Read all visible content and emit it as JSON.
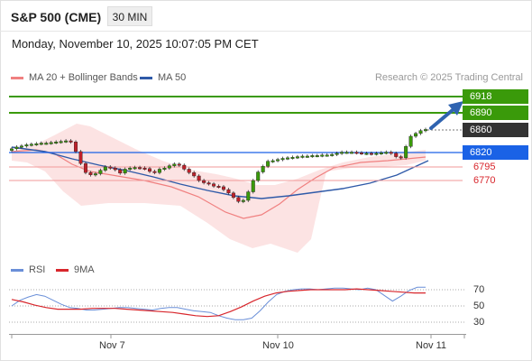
{
  "header": {
    "symbol": "S&P 500 (CME)",
    "timeframe": "30 MIN",
    "datetime": "Monday, November 10, 2025 10:07:05 PM CET"
  },
  "legend": {
    "ma20_label": "MA 20 + Bollinger Bands",
    "ma50_label": "MA 50",
    "source": "Research © 2025 Trading Central"
  },
  "levels": {
    "resistance2": "6918",
    "resistance1": "6890",
    "last_price": "6860",
    "pivot": "6820",
    "support1": "6795",
    "support2": "6770"
  },
  "rsi_legend": {
    "rsi_label": "RSI",
    "ma_label": "9MA"
  },
  "rsi_axis": [
    "70",
    "50",
    "30"
  ],
  "x_axis": [
    "Nov 7",
    "Nov 10",
    "Nov 11"
  ],
  "colors": {
    "resistance": "#3a9a0a",
    "pivot": "#1a62e6",
    "last_price": "#333333",
    "support": "#d8262c",
    "ma20_band": "#f08080",
    "ma50": "#2f5aa8",
    "up_candle": "#3a9a0a",
    "down_candle": "#c0202a",
    "rsi_line": "#6a8fd8",
    "rsi_ma": "#d8262c",
    "arrow": "#2f63b0"
  },
  "chart_data": {
    "type": "candlestick",
    "x": [
      "Nov 7",
      "Nov 10",
      "Nov 11"
    ],
    "closes": [
      6826,
      6829,
      6831,
      6833,
      6834,
      6835,
      6836,
      6836,
      6837,
      6838,
      6839,
      6840,
      6838,
      6821,
      6800,
      6784,
      6780,
      6782,
      6788,
      6794,
      6792,
      6789,
      6783,
      6790,
      6792,
      6793,
      6792,
      6791,
      6786,
      6784,
      6790,
      6792,
      6796,
      6799,
      6797,
      6790,
      6784,
      6778,
      6770,
      6766,
      6764,
      6760,
      6759,
      6754,
      6748,
      6740,
      6733,
      6735,
      6750,
      6770,
      6785,
      6795,
      6804,
      6805,
      6807,
      6809,
      6810,
      6811,
      6812,
      6813,
      6813,
      6814,
      6814,
      6815,
      6815,
      6816,
      6818,
      6820,
      6820,
      6820,
      6819,
      6818,
      6818,
      6817,
      6818,
      6819,
      6820,
      6818,
      6812,
      6810,
      6830,
      6848,
      6853,
      6858,
      6860
    ],
    "rsi": [
      50,
      57,
      61,
      64,
      62,
      57,
      52,
      48,
      47,
      45,
      45,
      46,
      47,
      48,
      48,
      47,
      46,
      45,
      47,
      48,
      48,
      46,
      44,
      43,
      42,
      38,
      35,
      33,
      33,
      35,
      44,
      55,
      64,
      68,
      70,
      71,
      71,
      70,
      71,
      72,
      72,
      71,
      70,
      72,
      70,
      63,
      56,
      62,
      69,
      73,
      73
    ],
    "rsi_ma": [
      58,
      55,
      51,
      48,
      46,
      46,
      46,
      47,
      47,
      47,
      46,
      45,
      44,
      43,
      42,
      40,
      38,
      37,
      38,
      43,
      49,
      56,
      62,
      66,
      68,
      69,
      70,
      70,
      70,
      70,
      71,
      70,
      69,
      68,
      67,
      66,
      66
    ]
  }
}
